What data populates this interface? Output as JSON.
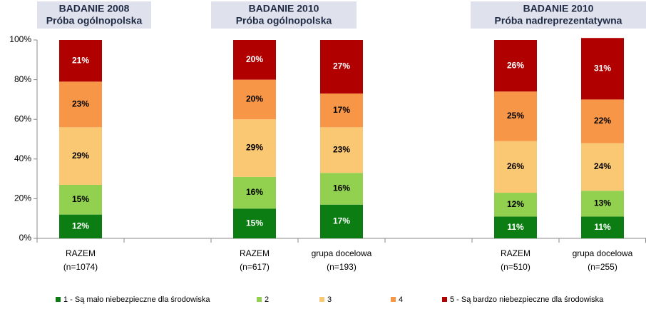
{
  "chart_data": {
    "type": "stacked_bar",
    "headers": [
      [
        "BADANIE 2008",
        "Próba ogólnopolska"
      ],
      [
        "BADANIE 2010",
        "Próba ogólnopolska"
      ],
      [
        "BADANIE 2010",
        "Próba nadreprezentatywna"
      ]
    ],
    "categories": [
      [
        "RAZEM",
        "(n=1074)"
      ],
      null,
      [
        "RAZEM",
        "(n=617)"
      ],
      [
        "grupa docelowa",
        "(n=193)"
      ],
      null,
      [
        "RAZEM",
        "(n=510)"
      ],
      [
        "grupa docelowa",
        "(n=255)"
      ]
    ],
    "series": [
      {
        "name": "1 - Są mało niebezpieczne dla środowiska",
        "color": "#0b7d12",
        "values": [
          12,
          null,
          15,
          17,
          null,
          11,
          11
        ],
        "value_labels": [
          "12%",
          null,
          "15%",
          "17%",
          null,
          "11%",
          "11%"
        ]
      },
      {
        "name": "2",
        "color": "#92d050",
        "values": [
          15,
          null,
          16,
          16,
          null,
          12,
          13
        ],
        "value_labels": [
          "15%",
          null,
          "16%",
          "16%",
          null,
          "12%",
          "13%"
        ]
      },
      {
        "name": "3",
        "color": "#fac773",
        "values": [
          29,
          null,
          29,
          23,
          null,
          26,
          24
        ],
        "value_labels": [
          "29%",
          null,
          "29%",
          "23%",
          null,
          "26%",
          "24%"
        ]
      },
      {
        "name": "4",
        "color": "#f79646",
        "values": [
          23,
          null,
          20,
          17,
          null,
          25,
          22
        ],
        "value_labels": [
          "23%",
          null,
          "20%",
          "17%",
          null,
          "25%",
          "22%"
        ]
      },
      {
        "name": "5 - Są bardzo niebezpieczne dla środowiska",
        "color": "#b00000",
        "values": [
          21,
          null,
          20,
          27,
          null,
          26,
          31
        ],
        "value_labels": [
          "21%",
          null,
          "20%",
          "27%",
          null,
          "26%",
          "31%"
        ]
      }
    ],
    "ylim": [
      0,
      100
    ],
    "yticks": [
      {
        "value": 0,
        "label": "0%"
      },
      {
        "value": 20,
        "label": "20%"
      },
      {
        "value": 40,
        "label": "40%"
      },
      {
        "value": 60,
        "label": "60%"
      },
      {
        "value": 80,
        "label": "80%"
      },
      {
        "value": 100,
        "label": "100%"
      }
    ],
    "legend": "bottom"
  }
}
